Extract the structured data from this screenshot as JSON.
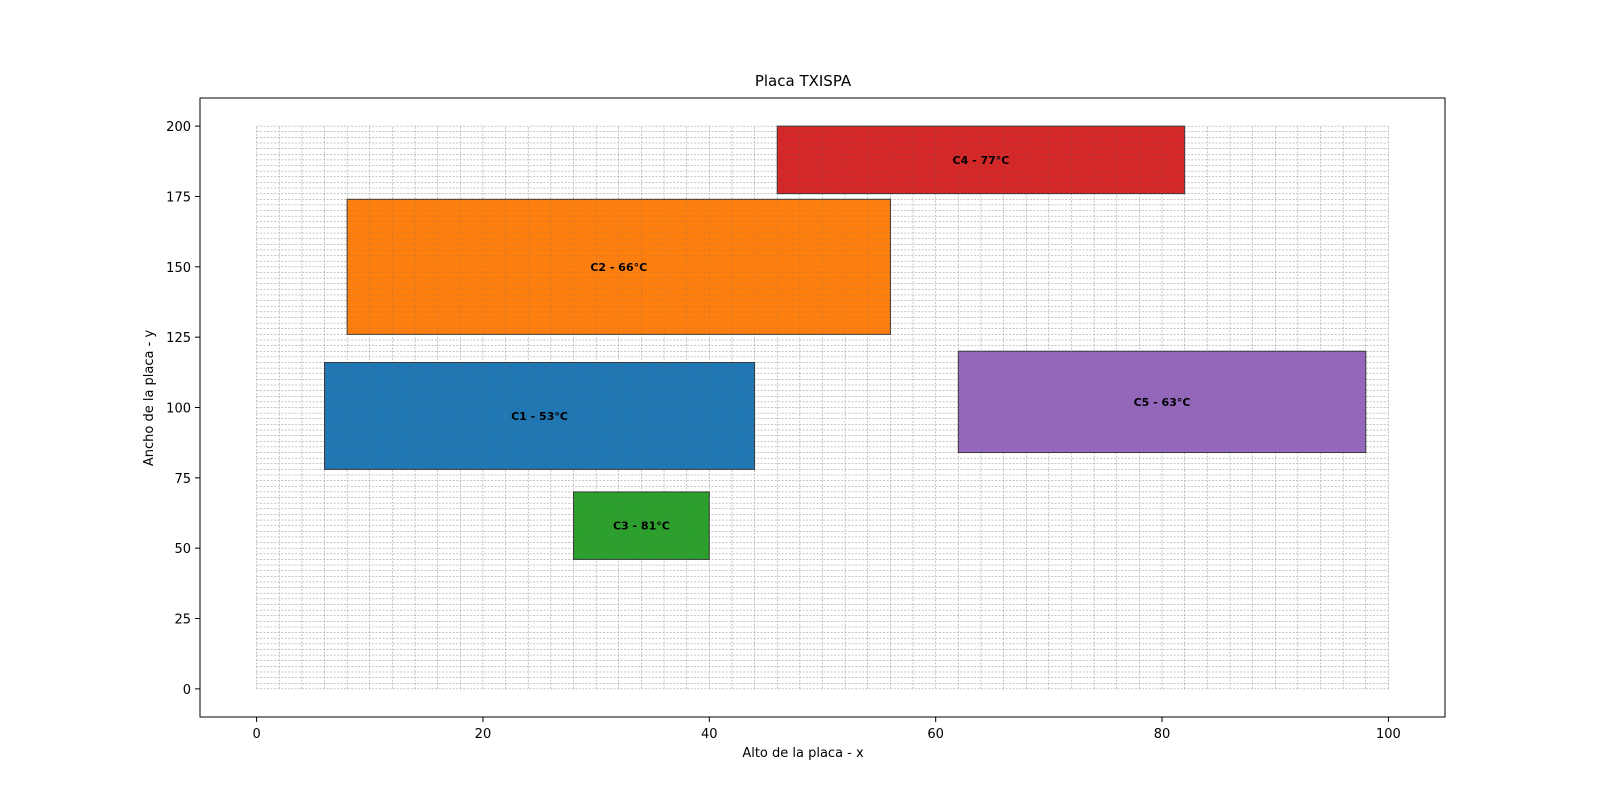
{
  "chart_data": {
    "type": "rectangles",
    "title": "Placa TXISPA",
    "xlabel": "Alto de la placa - x",
    "ylabel": "Ancho de la placa - y",
    "xlim": [
      -5,
      105
    ],
    "ylim": [
      -10,
      210
    ],
    "xticks": [
      0,
      20,
      40,
      60,
      80,
      100
    ],
    "yticks": [
      0,
      25,
      50,
      75,
      100,
      125,
      150,
      175,
      200
    ],
    "plate": {
      "x": [
        0,
        100
      ],
      "y": [
        0,
        200
      ],
      "grid_step_x": 2,
      "grid_step_y": 2,
      "grid": true
    },
    "components": [
      {
        "id": "C1",
        "label": "C1 - 53°C",
        "x": 6,
        "y": 78,
        "width": 38,
        "height": 38,
        "color": "#1f77b4"
      },
      {
        "id": "C2",
        "label": "C2 - 66°C",
        "x": 8,
        "y": 126,
        "width": 48,
        "height": 48,
        "color": "#ff7f0e"
      },
      {
        "id": "C3",
        "label": "C3 - 81°C",
        "x": 28,
        "y": 46,
        "width": 12,
        "height": 24,
        "color": "#2ca02c"
      },
      {
        "id": "C4",
        "label": "C4 - 77°C",
        "x": 46,
        "y": 176,
        "width": 36,
        "height": 24,
        "color": "#d62728"
      },
      {
        "id": "C5",
        "label": "C5 - 63°C",
        "x": 62,
        "y": 84,
        "width": 36,
        "height": 36,
        "color": "#9467bd"
      }
    ]
  }
}
